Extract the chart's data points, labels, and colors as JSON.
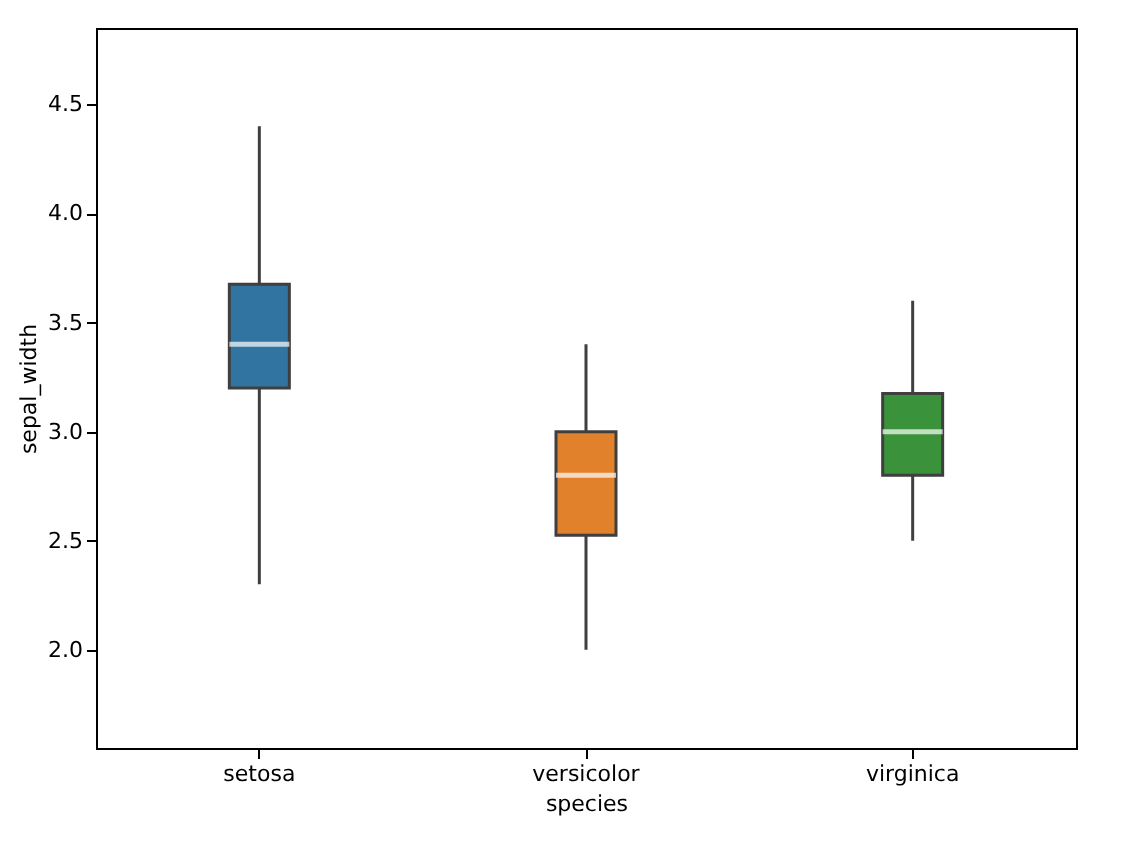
{
  "chart_data": {
    "type": "box",
    "xlabel": "species",
    "ylabel": "sepal_width",
    "categories": [
      "setosa",
      "versicolor",
      "virginica"
    ],
    "colors": [
      "#3274a1",
      "#e1812c",
      "#3a923a"
    ],
    "boxes": [
      {
        "low": 2.3,
        "q1": 3.2,
        "median": 3.4,
        "q3": 3.675,
        "high": 4.4
      },
      {
        "low": 2.0,
        "q1": 2.525,
        "median": 2.8,
        "q3": 3.0,
        "high": 3.4
      },
      {
        "low": 2.5,
        "q1": 2.8,
        "median": 3.0,
        "q3": 3.175,
        "high": 3.6
      }
    ],
    "ylim": [
      1.55,
      4.85
    ],
    "yticks": [
      {
        "value": 2,
        "label": "2.0"
      },
      2.5,
      {
        "value": 3,
        "label": "3.0"
      },
      3.5,
      {
        "value": 4,
        "label": "4.0"
      },
      4.5
    ],
    "grid": false
  }
}
